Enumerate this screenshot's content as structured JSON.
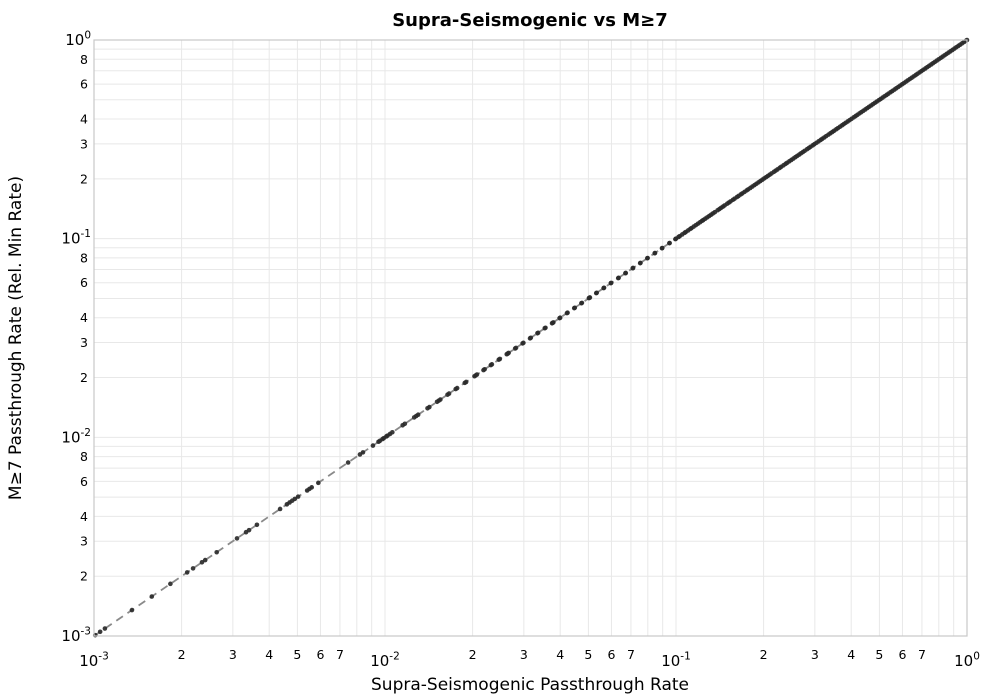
{
  "chart_data": {
    "type": "scatter",
    "title": "Supra-Seismogenic vs M≥7",
    "xlabel": "Supra-Seismogenic Passthrough Rate",
    "ylabel": "M≥7 Passthrough Rate (Rel. Min Rate)",
    "log_scale": {
      "x": true,
      "y": true
    },
    "xlim": [
      0.001,
      1.0
    ],
    "ylim": [
      0.001,
      1.0
    ],
    "grid": true,
    "legend": "none",
    "relation": "y = x (all points lie on the identity line)",
    "reference_line": {
      "style": "dashed",
      "from": [
        0.001,
        0.001
      ],
      "to": [
        1.0,
        1.0
      ],
      "color": "#8a8a8a"
    },
    "axes": {
      "x_major_exponents": [
        -3,
        -2,
        -1,
        0
      ],
      "x_minor_labels": [
        2,
        3,
        4,
        5,
        6,
        7
      ],
      "y_major_exponents": [
        0,
        -1,
        -2,
        -3
      ],
      "y_minor_labels": [
        8,
        6,
        4,
        3,
        2
      ]
    },
    "colors": {
      "point": "#2a2a2a",
      "grid": "#e8e8e8",
      "border": "#c8c8c8",
      "dashed": "#8a8a8a",
      "text": "#000000"
    },
    "x_values": [
      0.00101,
      0.00105,
      0.00109,
      0.00135,
      0.00158,
      0.00183,
      0.00209,
      0.00219,
      0.00235,
      0.00241,
      0.00264,
      0.0031,
      0.00333,
      0.00341,
      0.00363,
      0.00436,
      0.0046,
      0.0047,
      0.0048,
      0.0049,
      0.00503,
      0.0054,
      0.0055,
      0.0056,
      0.0059,
      0.00747,
      0.0082,
      0.0084,
      0.00909,
      0.0095,
      0.0096,
      0.0098,
      0.0099,
      0.0101,
      0.0102,
      0.0104,
      0.0106,
      0.0115,
      0.0117,
      0.0126,
      0.0128,
      0.013,
      0.014,
      0.0142,
      0.0151,
      0.0153,
      0.0155,
      0.0164,
      0.0166,
      0.0175,
      0.0177,
      0.0188,
      0.019,
      0.0203,
      0.0205,
      0.0207,
      0.0218,
      0.022,
      0.0231,
      0.0233,
      0.0246,
      0.0248,
      0.0262,
      0.0264,
      0.0266,
      0.028,
      0.0282,
      0.0297,
      0.0299,
      0.0315,
      0.0317,
      0.0334,
      0.0336,
      0.0354,
      0.0356,
      0.0375,
      0.0377,
      0.0379,
      0.0398,
      0.04,
      0.0422,
      0.0424,
      0.0447,
      0.0449,
      0.0473,
      0.0475,
      0.0502,
      0.0504,
      0.0506,
      0.0532,
      0.0534,
      0.0564,
      0.0566,
      0.0597,
      0.0599,
      0.0633,
      0.0635,
      0.067,
      0.0672,
      0.071,
      0.0712,
      0.0753,
      0.0755,
      0.0797,
      0.0799,
      0.0845,
      0.0847,
      0.0895,
      0.0897,
      0.0949,
      0.0951,
      0.0995,
      0.1,
      0.102,
      0.103,
      0.105,
      0.107,
      0.108,
      0.11,
      0.112,
      0.113,
      0.115,
      0.117,
      0.119,
      0.121,
      0.123,
      0.124,
      0.126,
      0.128,
      0.13,
      0.132,
      0.134,
      0.136,
      0.139,
      0.141,
      0.143,
      0.145,
      0.147,
      0.15,
      0.152,
      0.154,
      0.157,
      0.159,
      0.162,
      0.164,
      0.167,
      0.169,
      0.172,
      0.175,
      0.177,
      0.18,
      0.183,
      0.186,
      0.189,
      0.192,
      0.195,
      0.198,
      0.201,
      0.204,
      0.207,
      0.21,
      0.213,
      0.217,
      0.22,
      0.223,
      0.227,
      0.23,
      0.234,
      0.238,
      0.241,
      0.245,
      0.249,
      0.253,
      0.257,
      0.261,
      0.265,
      0.269,
      0.273,
      0.277,
      0.282,
      0.286,
      0.29,
      0.295,
      0.299,
      0.304,
      0.309,
      0.314,
      0.318,
      0.323,
      0.328,
      0.334,
      0.339,
      0.344,
      0.349,
      0.355,
      0.36,
      0.366,
      0.372,
      0.377,
      0.383,
      0.389,
      0.395,
      0.401,
      0.408,
      0.414,
      0.42,
      0.427,
      0.433,
      0.44,
      0.447,
      0.454,
      0.461,
      0.468,
      0.475,
      0.483,
      0.49,
      0.498,
      0.505,
      0.513,
      0.521,
      0.529,
      0.537,
      0.546,
      0.554,
      0.563,
      0.571,
      0.58,
      0.589,
      0.598,
      0.607,
      0.617,
      0.626,
      0.636,
      0.646,
      0.656,
      0.666,
      0.676,
      0.687,
      0.697,
      0.708,
      0.719,
      0.73,
      0.741,
      0.753,
      0.764,
      0.776,
      0.788,
      0.8,
      0.813,
      0.825,
      0.838,
      0.851,
      0.864,
      0.877,
      0.891,
      0.905,
      0.919,
      0.933,
      0.947,
      0.962,
      0.977,
      0.992,
      1.0
    ]
  }
}
